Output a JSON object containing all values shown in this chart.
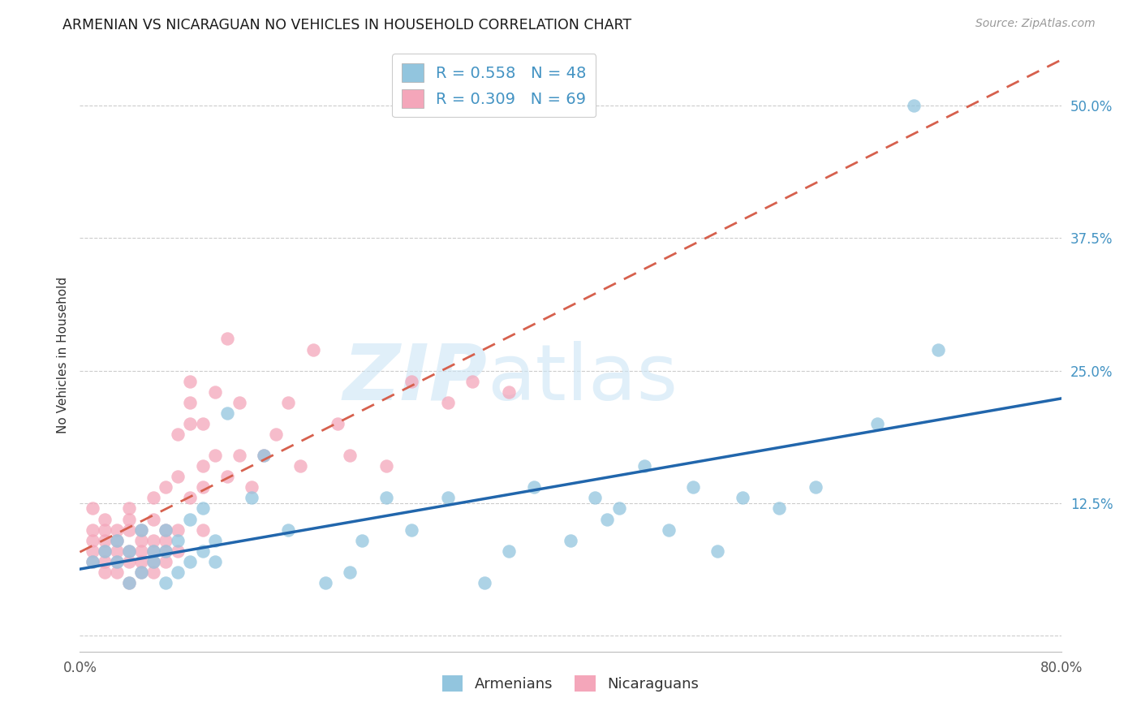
{
  "title": "ARMENIAN VS NICARAGUAN NO VEHICLES IN HOUSEHOLD CORRELATION CHART",
  "source": "Source: ZipAtlas.com",
  "ylabel": "No Vehicles in Household",
  "xlim": [
    0.0,
    0.8
  ],
  "ylim": [
    -0.015,
    0.545
  ],
  "yticks": [
    0.0,
    0.125,
    0.25,
    0.375,
    0.5
  ],
  "ytick_labels": [
    "",
    "12.5%",
    "25.0%",
    "37.5%",
    "50.0%"
  ],
  "xticks": [
    0.0,
    0.1,
    0.2,
    0.3,
    0.4,
    0.5,
    0.6,
    0.7,
    0.8
  ],
  "xtick_labels": [
    "0.0%",
    "",
    "",
    "",
    "",
    "",
    "",
    "",
    "80.0%"
  ],
  "armenian_color": "#92c5de",
  "nicaraguan_color": "#f4a6ba",
  "armenian_line_color": "#2166ac",
  "nicaraguan_line_color": "#d6604d",
  "tick_label_color": "#4393c3",
  "armenian_R": 0.558,
  "armenian_N": 48,
  "nicaraguan_R": 0.309,
  "nicaraguan_N": 69,
  "armenian_x": [
    0.01,
    0.02,
    0.03,
    0.03,
    0.04,
    0.04,
    0.05,
    0.05,
    0.06,
    0.06,
    0.07,
    0.07,
    0.07,
    0.08,
    0.08,
    0.09,
    0.09,
    0.1,
    0.1,
    0.11,
    0.11,
    0.12,
    0.14,
    0.15,
    0.17,
    0.2,
    0.22,
    0.23,
    0.25,
    0.27,
    0.3,
    0.33,
    0.35,
    0.37,
    0.4,
    0.42,
    0.43,
    0.44,
    0.46,
    0.48,
    0.5,
    0.52,
    0.54,
    0.57,
    0.6,
    0.65,
    0.68,
    0.7
  ],
  "armenian_y": [
    0.07,
    0.08,
    0.07,
    0.09,
    0.05,
    0.08,
    0.06,
    0.1,
    0.07,
    0.08,
    0.05,
    0.08,
    0.1,
    0.06,
    0.09,
    0.07,
    0.11,
    0.08,
    0.12,
    0.07,
    0.09,
    0.21,
    0.13,
    0.17,
    0.1,
    0.05,
    0.06,
    0.09,
    0.13,
    0.1,
    0.13,
    0.05,
    0.08,
    0.14,
    0.09,
    0.13,
    0.11,
    0.12,
    0.16,
    0.1,
    0.14,
    0.08,
    0.13,
    0.12,
    0.14,
    0.2,
    0.5,
    0.27
  ],
  "nicaraguan_x": [
    0.01,
    0.01,
    0.01,
    0.01,
    0.01,
    0.02,
    0.02,
    0.02,
    0.02,
    0.02,
    0.02,
    0.03,
    0.03,
    0.03,
    0.03,
    0.03,
    0.04,
    0.04,
    0.04,
    0.04,
    0.04,
    0.04,
    0.05,
    0.05,
    0.05,
    0.05,
    0.05,
    0.06,
    0.06,
    0.06,
    0.06,
    0.06,
    0.06,
    0.07,
    0.07,
    0.07,
    0.07,
    0.07,
    0.08,
    0.08,
    0.08,
    0.08,
    0.09,
    0.09,
    0.09,
    0.09,
    0.1,
    0.1,
    0.1,
    0.1,
    0.11,
    0.11,
    0.12,
    0.12,
    0.13,
    0.13,
    0.14,
    0.15,
    0.16,
    0.17,
    0.18,
    0.19,
    0.21,
    0.22,
    0.25,
    0.27,
    0.3,
    0.32,
    0.35
  ],
  "nicaraguan_y": [
    0.07,
    0.08,
    0.09,
    0.1,
    0.12,
    0.06,
    0.07,
    0.08,
    0.09,
    0.1,
    0.11,
    0.06,
    0.07,
    0.08,
    0.09,
    0.1,
    0.05,
    0.07,
    0.08,
    0.1,
    0.11,
    0.12,
    0.06,
    0.07,
    0.08,
    0.09,
    0.1,
    0.06,
    0.07,
    0.08,
    0.09,
    0.11,
    0.13,
    0.07,
    0.08,
    0.09,
    0.1,
    0.14,
    0.08,
    0.1,
    0.15,
    0.19,
    0.13,
    0.2,
    0.22,
    0.24,
    0.1,
    0.14,
    0.16,
    0.2,
    0.17,
    0.23,
    0.15,
    0.28,
    0.17,
    0.22,
    0.14,
    0.17,
    0.19,
    0.22,
    0.16,
    0.27,
    0.2,
    0.17,
    0.16,
    0.24,
    0.22,
    0.24,
    0.23
  ],
  "background_color": "#ffffff",
  "grid_color": "#cccccc"
}
